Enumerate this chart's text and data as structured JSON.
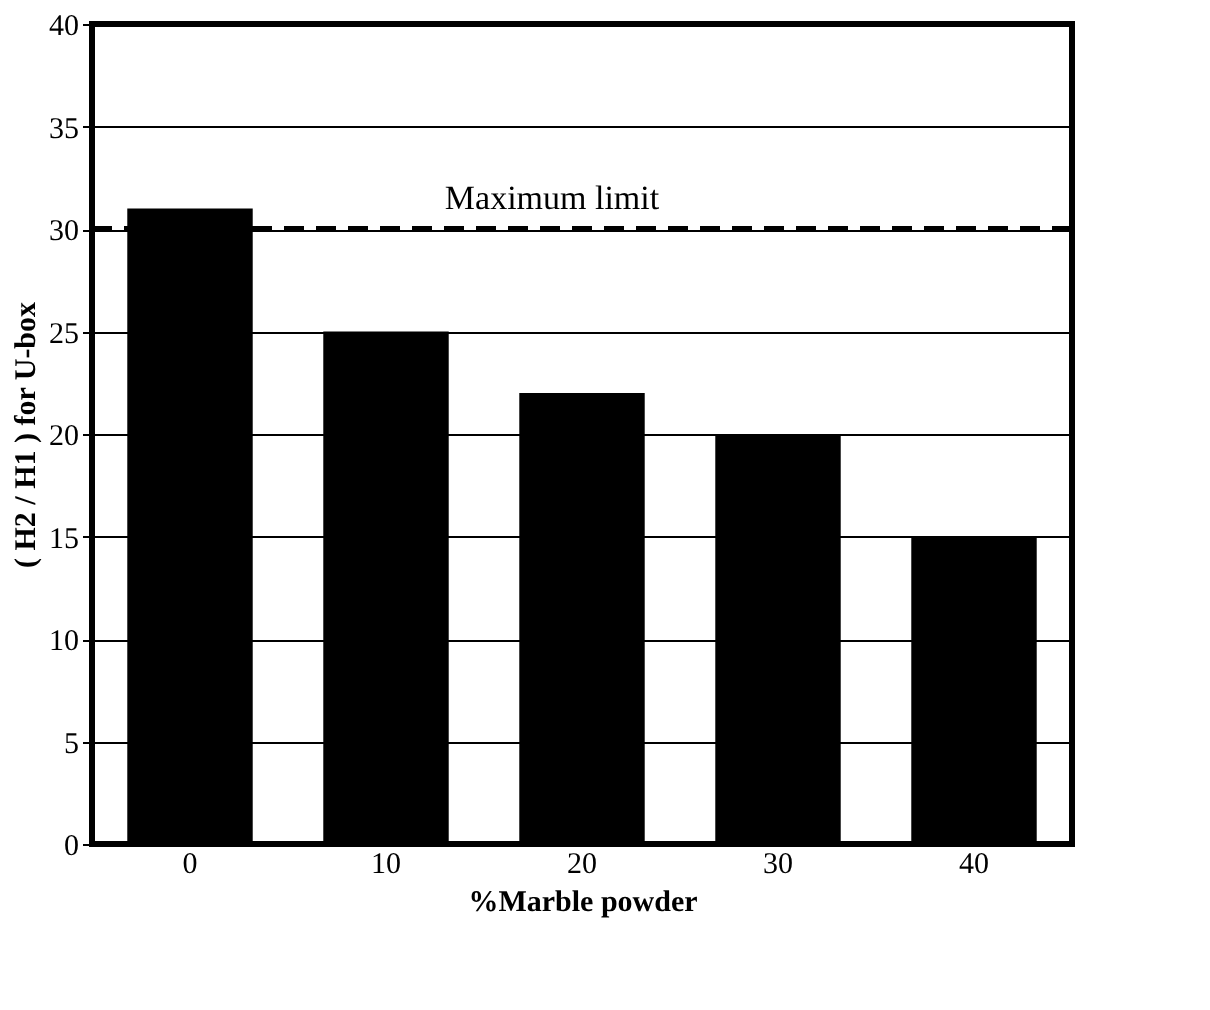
{
  "chart_data": {
    "type": "bar",
    "xlabel": "%Marble powder",
    "ylabel": "( H2 / H1 ) for U-box",
    "categories": [
      "0",
      "10",
      "20",
      "30",
      "40"
    ],
    "values": [
      31,
      25,
      22,
      20,
      15
    ],
    "color": "#000000",
    "ylim": [
      0,
      40
    ],
    "yticks": [
      0,
      5,
      10,
      15,
      20,
      25,
      30,
      35,
      40
    ],
    "grid": "y",
    "ref_lines": [
      {
        "axis": "y",
        "value": 30,
        "label": "Maximum limit",
        "color": "#000000",
        "line_style": "dashed"
      }
    ]
  }
}
